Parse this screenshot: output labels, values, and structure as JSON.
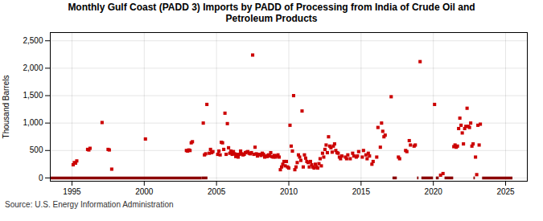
{
  "chart_data": {
    "type": "scatter",
    "title": "Monthly Gulf Coast (PADD 3) Imports by PADD of Processing from India of Crude Oil and\nPetroleum Products",
    "ylabel": "Thousand Barrels",
    "caption": "Source: U.S. Energy Information Administration",
    "xlim": [
      1993.5,
      2026.5
    ],
    "ylim": [
      -60,
      2650
    ],
    "xticks": [
      1995,
      2000,
      2005,
      2010,
      2015,
      2020,
      2025
    ],
    "yticks": [
      0,
      500,
      {
        "value": 1000,
        "label": "1,000"
      },
      {
        "value": 1500,
        "label": "1,500"
      },
      {
        "value": 2000,
        "label": "2,000"
      },
      {
        "value": 2500,
        "label": "2,500"
      }
    ],
    "grid": true,
    "series": [
      {
        "type": "scatter",
        "color": "#cc0000",
        "marker": "square",
        "x": [
          1995.083,
          1995.167,
          1995.25,
          1995.333,
          1996.083,
          1996.167,
          1996.25,
          1997.083,
          1997.5,
          1997.583,
          1997.75,
          2000.083,
          2002.917,
          2003.0,
          2003.083,
          2003.167,
          2003.25,
          2003.333,
          2004.083,
          2004.167,
          2004.25,
          2004.333,
          2004.5,
          2004.583,
          2004.667,
          2004.75,
          2005.083,
          2005.167,
          2005.25,
          2005.333,
          2005.417,
          2005.5,
          2005.583,
          2005.667,
          2005.75,
          2005.833,
          2005.917,
          2006.0,
          2006.083,
          2006.167,
          2006.25,
          2006.333,
          2006.417,
          2006.5,
          2006.583,
          2006.667,
          2006.75,
          2006.833,
          2006.917,
          2007.0,
          2007.083,
          2007.167,
          2007.25,
          2007.333,
          2007.417,
          2007.5,
          2007.583,
          2007.667,
          2007.75,
          2007.833,
          2007.917,
          2008.0,
          2008.083,
          2008.167,
          2008.25,
          2008.333,
          2008.417,
          2008.5,
          2008.583,
          2008.667,
          2008.75,
          2008.833,
          2008.917,
          2009.0,
          2009.083,
          2009.167,
          2009.25,
          2009.333,
          2009.417,
          2009.5,
          2009.583,
          2009.667,
          2009.75,
          2009.833,
          2009.917,
          2010.0,
          2010.083,
          2010.167,
          2010.25,
          2010.333,
          2010.417,
          2010.5,
          2010.583,
          2010.667,
          2010.75,
          2010.833,
          2010.917,
          2011.0,
          2011.083,
          2011.167,
          2011.25,
          2011.333,
          2011.417,
          2011.5,
          2011.583,
          2011.667,
          2011.75,
          2011.833,
          2011.917,
          2012.0,
          2012.083,
          2012.167,
          2012.25,
          2012.333,
          2012.417,
          2012.5,
          2012.583,
          2012.667,
          2012.75,
          2012.833,
          2012.917,
          2013.0,
          2013.083,
          2013.167,
          2013.25,
          2013.333,
          2013.417,
          2013.5,
          2013.583,
          2013.667,
          2013.917,
          2014.0,
          2014.083,
          2014.25,
          2014.417,
          2014.5,
          2014.667,
          2014.75,
          2014.833,
          2015.083,
          2015.167,
          2015.333,
          2015.417,
          2015.5,
          2015.583,
          2015.75,
          2015.833,
          2016.083,
          2016.167,
          2016.333,
          2016.417,
          2016.5,
          2016.583,
          2016.667,
          2017.083,
          2017.583,
          2017.667,
          2018.083,
          2018.167,
          2018.333,
          2018.417,
          2018.667,
          2018.75,
          2019.083,
          2020.083,
          2020.5,
          2020.667,
          2021.417,
          2021.5,
          2021.583,
          2021.667,
          2021.75,
          2021.833,
          2021.917,
          2022.0,
          2022.083,
          2022.167,
          2022.25,
          2022.333,
          2022.417,
          2022.5,
          2022.583,
          2022.667,
          2022.75,
          2022.917,
          2023.0,
          2023.083,
          2023.167,
          2023.25
        ],
        "values": [
          240,
          280,
          270,
          310,
          520,
          510,
          540,
          1010,
          520,
          510,
          160,
          710,
          500,
          490,
          510,
          500,
          640,
          660,
          1000,
          420,
          440,
          1340,
          450,
          520,
          460,
          480,
          430,
          490,
          420,
          650,
          640,
          520,
          1180,
          430,
          990,
          550,
          450,
          490,
          430,
          480,
          440,
          390,
          430,
          380,
          430,
          490,
          440,
          420,
          430,
          460,
          470,
          480,
          450,
          440,
          460,
          2240,
          430,
          560,
          440,
          400,
          430,
          430,
          410,
          450,
          430,
          380,
          400,
          390,
          420,
          400,
          460,
          390,
          380,
          410,
          380,
          400,
          420,
          380,
          150,
          200,
          250,
          300,
          220,
          300,
          200,
          180,
          960,
          580,
          490,
          1500,
          150,
          200,
          280,
          420,
          380,
          320,
          1220,
          200,
          420,
          360,
          300,
          280,
          200,
          300,
          240,
          200,
          180,
          250,
          200,
          180,
          260,
          350,
          220,
          450,
          380,
          520,
          600,
          460,
          750,
          580,
          550,
          470,
          580,
          620,
          500,
          460,
          450,
          380,
          350,
          400,
          380,
          350,
          420,
          350,
          450,
          400,
          380,
          400,
          480,
          380,
          500,
          420,
          350,
          450,
          400,
          250,
          300,
          380,
          920,
          560,
          1000,
          850,
          750,
          780,
          1480,
          380,
          350,
          500,
          480,
          680,
          600,
          580,
          600,
          2120,
          1340,
          50,
          80,
          570,
          600,
          560,
          580,
          900,
          1090,
          960,
          820,
          620,
          900,
          940,
          1270,
          940,
          920,
          1000,
          580,
          620,
          380,
          60,
          960,
          600,
          980
        ]
      },
      {
        "type": "line",
        "color": "#8b0000",
        "line_style": "solid",
        "value": 0,
        "segments": [
          [
            1993.5,
            2004.0
          ],
          [
            2004.0,
            2004.4
          ],
          [
            2017.2,
            2017.5
          ],
          [
            2018.9,
            2019.0
          ],
          [
            2019.2,
            2020.0
          ],
          [
            2020.2,
            2020.4
          ],
          [
            2020.8,
            2021.4
          ],
          [
            2022.8,
            2022.9
          ],
          [
            2023.4,
            2025.5
          ]
        ]
      }
    ]
  }
}
